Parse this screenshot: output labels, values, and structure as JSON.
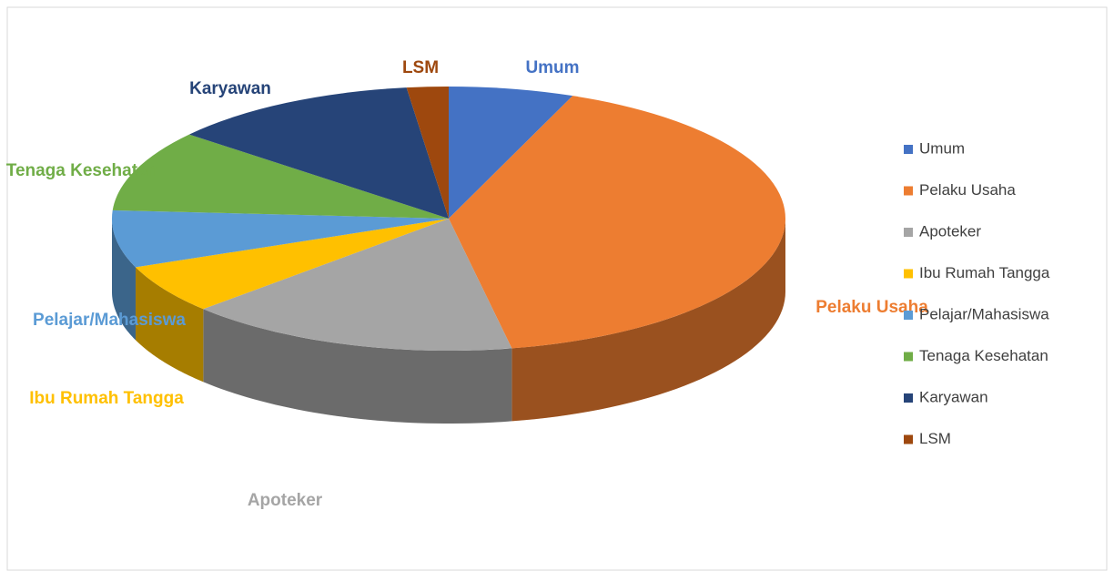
{
  "chart_data": {
    "type": "pie",
    "categories": [
      "Umum",
      "Pelaku Usaha",
      "Apoteker",
      "Ibu Rumah Tangga",
      "Pelajar/Mahasiswa",
      "Tenaga Kesehatan",
      "Karyawan",
      "LSM"
    ],
    "values": [
      6,
      41,
      16,
      6,
      7,
      10,
      12,
      2
    ],
    "colors": [
      "#4472c4",
      "#ed7d31",
      "#a5a5a5",
      "#ffc000",
      "#5b9bd5",
      "#70ad47",
      "#264478",
      "#9e480e"
    ],
    "legend": "right"
  }
}
